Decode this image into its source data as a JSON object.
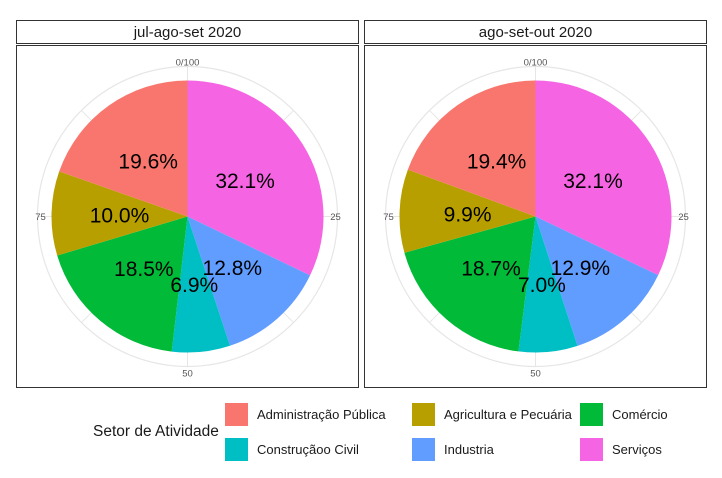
{
  "chart_data": [
    {
      "type": "pie",
      "facet_title": "jul-ago-set 2020",
      "unit": "%",
      "slices_clockwise_from_top": [
        {
          "category": "Serviços",
          "value": 32.1,
          "label": "32.1%",
          "color": "#F564E3"
        },
        {
          "category": "Industria",
          "value": 12.8,
          "label": "12.8%",
          "color": "#619CFF"
        },
        {
          "category": "Construçãoo Civil",
          "value": 6.9,
          "label": "6.9%",
          "color": "#00BFC4"
        },
        {
          "category": "Comércio",
          "value": 18.5,
          "label": "18.5%",
          "color": "#00BA38"
        },
        {
          "category": "Agricultura e Pecuária",
          "value": 10.0,
          "label": "10.0%",
          "color": "#B79F00"
        },
        {
          "category": "Administração Pública",
          "value": 19.6,
          "label": "19.6%",
          "color": "#F8766D"
        }
      ],
      "axis_tick_labels": {
        "top": "0/100",
        "right": "25",
        "bottom": "50",
        "left": "75"
      }
    },
    {
      "type": "pie",
      "facet_title": "ago-set-out 2020",
      "unit": "%",
      "slices_clockwise_from_top": [
        {
          "category": "Serviços",
          "value": 32.1,
          "label": "32.1%",
          "color": "#F564E3"
        },
        {
          "category": "Industria",
          "value": 12.9,
          "label": "12.9%",
          "color": "#619CFF"
        },
        {
          "category": "Construçãoo Civil",
          "value": 7.0,
          "label": "7.0%",
          "color": "#00BFC4"
        },
        {
          "category": "Comércio",
          "value": 18.7,
          "label": "18.7%",
          "color": "#00BA38"
        },
        {
          "category": "Agricultura e Pecuária",
          "value": 9.9,
          "label": "9.9%",
          "color": "#B79F00"
        },
        {
          "category": "Administração Pública",
          "value": 19.4,
          "label": "19.4%",
          "color": "#F8766D"
        }
      ],
      "axis_tick_labels": {
        "top": "0/100",
        "right": "25",
        "bottom": "50",
        "left": "75"
      }
    }
  ],
  "legend": {
    "title": "Setor de Atividade",
    "items": [
      {
        "label": "Administração Pública",
        "color": "#F8766D"
      },
      {
        "label": "Agricultura e Pecuária",
        "color": "#B79F00"
      },
      {
        "label": "Comércio",
        "color": "#00BA38"
      },
      {
        "label": "Construçãoo Civil",
        "color": "#00BFC4"
      },
      {
        "label": "Industria",
        "color": "#619CFF"
      },
      {
        "label": "Serviços",
        "color": "#F564E3"
      }
    ]
  },
  "style_colors": {
    "panel_border": "#333333",
    "grid": "#e6e6e6",
    "tick_label": "#555555",
    "slice_label": "#000000"
  }
}
